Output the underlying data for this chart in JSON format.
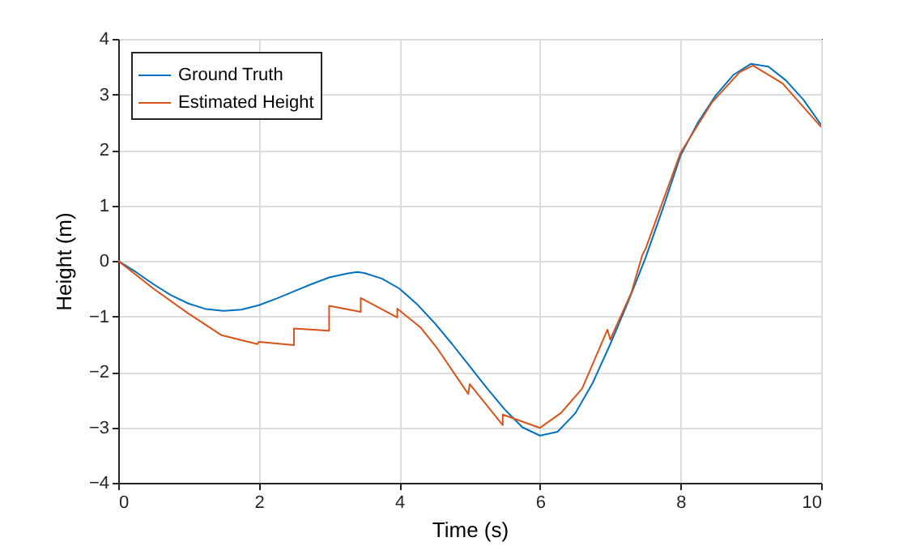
{
  "chart_data": {
    "type": "line",
    "xlabel": "Time (s)",
    "ylabel": "Height (m)",
    "xlim": [
      0,
      10
    ],
    "ylim": [
      -4,
      4
    ],
    "xticks": [
      0,
      2,
      4,
      6,
      8,
      10
    ],
    "yticks": [
      -4,
      -3,
      -2,
      -1,
      0,
      1,
      2,
      3,
      4
    ],
    "grid": true,
    "legend": "top left",
    "series": [
      {
        "name": "Ground Truth",
        "color": "#0072bd",
        "x": [
          0,
          0.25,
          0.5,
          0.75,
          1,
          1.25,
          1.5,
          1.75,
          2,
          2.25,
          2.5,
          2.75,
          3,
          3.25,
          3.4,
          3.5,
          3.75,
          4,
          4.25,
          4.5,
          4.75,
          5,
          5.25,
          5.5,
          5.75,
          6,
          6.25,
          6.5,
          6.75,
          7,
          7.25,
          7.5,
          7.75,
          8,
          8.25,
          8.5,
          8.75,
          9,
          9.25,
          9.5,
          9.75,
          10
        ],
        "values": [
          0,
          -0.2,
          -0.42,
          -0.62,
          -0.77,
          -0.87,
          -0.9,
          -0.88,
          -0.8,
          -0.68,
          -0.55,
          -0.42,
          -0.3,
          -0.23,
          -0.2,
          -0.22,
          -0.32,
          -0.5,
          -0.78,
          -1.12,
          -1.5,
          -1.9,
          -2.3,
          -2.68,
          -3,
          -3.15,
          -3.08,
          -2.75,
          -2.2,
          -1.5,
          -0.75,
          0.05,
          0.95,
          1.9,
          2.5,
          2.98,
          3.35,
          3.55,
          3.5,
          3.25,
          2.9,
          2.45
        ]
      },
      {
        "name": "Estimated Height",
        "color": "#d95319",
        "x": [
          0,
          0.5,
          1,
          1.47,
          1.98,
          2,
          2.5,
          2.5,
          3,
          3,
          3.45,
          3.45,
          3.97,
          3.97,
          4.3,
          4.54,
          4.98,
          5,
          5.47,
          5.47,
          6,
          6.3,
          6.6,
          6.96,
          7,
          7.3,
          7.46,
          7.5,
          8,
          8.45,
          8.84,
          9.03,
          9.45,
          10
        ],
        "values": [
          0,
          -0.5,
          -0.95,
          -1.34,
          -1.5,
          -1.46,
          -1.52,
          -1.22,
          -1.26,
          -0.81,
          -0.92,
          -0.67,
          -1.02,
          -0.86,
          -1.2,
          -1.58,
          -2.4,
          -2.22,
          -2.96,
          -2.77,
          -3.01,
          -2.74,
          -2.3,
          -1.24,
          -1.42,
          -0.57,
          0.12,
          0.21,
          1.95,
          2.86,
          3.4,
          3.52,
          3.2,
          2.41
        ]
      }
    ]
  }
}
